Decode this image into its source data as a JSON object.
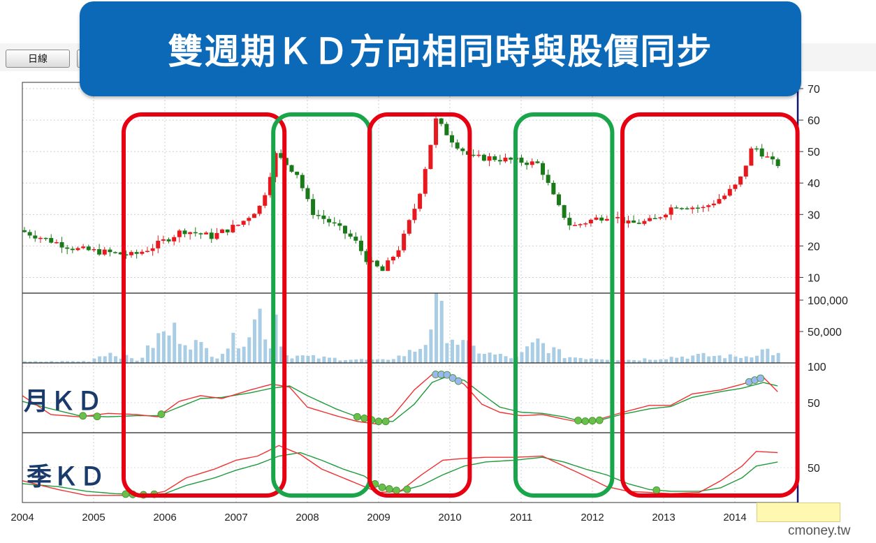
{
  "banner": {
    "title": "雙週期ＫＤ方向相同時與股價同步"
  },
  "toolbar": {
    "daily_button": "日線"
  },
  "labels": {
    "monthly_kd": "月ＫＤ",
    "quarterly_kd": "季ＫＤ"
  },
  "watermark": "cmoney.tw",
  "colors": {
    "up_candle": "#e8191e",
    "down_candle": "#1a7a1a",
    "k_line": "#f03030",
    "d_line": "#1f9a3a",
    "volume": "#a9cde4",
    "low_marker": "#6abf4b",
    "high_marker": "#9ab8ef",
    "red_box": "#e60012",
    "green_box": "#19a64a",
    "banner": "#0b69b8"
  },
  "chart_data": {
    "type": "candlestick",
    "x_ticks": [
      "2004",
      "2005",
      "2006",
      "2007",
      "2008",
      "2009",
      "2010",
      "2011",
      "2012",
      "2013",
      "2014"
    ],
    "price_axis": {
      "ticks": [
        10,
        20,
        30,
        40,
        50,
        60,
        70
      ],
      "ylim": [
        5,
        72
      ]
    },
    "volume_axis": {
      "ticks": [
        "50,000",
        "100,000"
      ],
      "ylim": [
        0,
        100000
      ]
    },
    "monthly_kd_axis": {
      "ticks": [
        "50",
        "100"
      ],
      "ylim": [
        0,
        100
      ]
    },
    "quarterly_kd_axis": {
      "ticks": [
        "50"
      ],
      "ylim": [
        0,
        100
      ]
    },
    "price_path": [
      [
        2004.0,
        25
      ],
      [
        2004.4,
        22
      ],
      [
        2004.8,
        19
      ],
      [
        2005.2,
        18
      ],
      [
        2005.6,
        17
      ],
      [
        2005.9,
        20
      ],
      [
        2006.3,
        25
      ],
      [
        2006.7,
        23
      ],
      [
        2007.1,
        27
      ],
      [
        2007.4,
        33
      ],
      [
        2007.6,
        49
      ],
      [
        2007.9,
        43
      ],
      [
        2008.1,
        31
      ],
      [
        2008.4,
        27
      ],
      [
        2008.7,
        22
      ],
      [
        2008.9,
        15
      ],
      [
        2009.1,
        12
      ],
      [
        2009.35,
        20
      ],
      [
        2009.6,
        35
      ],
      [
        2009.85,
        60
      ],
      [
        2010.1,
        53
      ],
      [
        2010.35,
        48
      ],
      [
        2010.6,
        48
      ],
      [
        2011.0,
        47
      ],
      [
        2011.3,
        46
      ],
      [
        2011.55,
        33
      ],
      [
        2011.75,
        26
      ],
      [
        2012.0,
        28
      ],
      [
        2012.3,
        30
      ],
      [
        2012.55,
        27
      ],
      [
        2012.9,
        28
      ],
      [
        2013.2,
        33
      ],
      [
        2013.6,
        32
      ],
      [
        2013.9,
        36
      ],
      [
        2014.1,
        40
      ],
      [
        2014.3,
        52
      ],
      [
        2014.6,
        46
      ]
    ],
    "volume_path": [
      [
        2004.0,
        2000
      ],
      [
        2004.9,
        3000
      ],
      [
        2005.15,
        18000
      ],
      [
        2005.6,
        4000
      ],
      [
        2005.9,
        45000
      ],
      [
        2006.1,
        52000
      ],
      [
        2006.3,
        38000
      ],
      [
        2006.7,
        12000
      ],
      [
        2006.9,
        34000
      ],
      [
        2007.1,
        45000
      ],
      [
        2007.3,
        82000
      ],
      [
        2007.45,
        30000
      ],
      [
        2007.5,
        95000
      ],
      [
        2007.65,
        13000
      ],
      [
        2008.2,
        8000
      ],
      [
        2008.6,
        6000
      ],
      [
        2009.0,
        4000
      ],
      [
        2009.3,
        12000
      ],
      [
        2009.6,
        28000
      ],
      [
        2009.7,
        65000
      ],
      [
        2009.8,
        92000
      ],
      [
        2009.9,
        58000
      ],
      [
        2010.1,
        32000
      ],
      [
        2010.5,
        15000
      ],
      [
        2010.9,
        8000
      ],
      [
        2011.2,
        35000
      ],
      [
        2011.6,
        10000
      ],
      [
        2012.0,
        8000
      ],
      [
        2012.5,
        5000
      ],
      [
        2013.0,
        9000
      ],
      [
        2013.5,
        12000
      ],
      [
        2014.1,
        10000
      ],
      [
        2014.4,
        22000
      ],
      [
        2014.6,
        12000
      ]
    ],
    "monthly_kd": {
      "k": [
        [
          2004.0,
          55
        ],
        [
          2004.4,
          22
        ],
        [
          2004.8,
          18
        ],
        [
          2005.2,
          24
        ],
        [
          2005.6,
          22
        ],
        [
          2005.9,
          18
        ],
        [
          2006.2,
          45
        ],
        [
          2006.5,
          55
        ],
        [
          2006.8,
          50
        ],
        [
          2007.2,
          65
        ],
        [
          2007.5,
          75
        ],
        [
          2007.75,
          70
        ],
        [
          2008.0,
          35
        ],
        [
          2008.4,
          20
        ],
        [
          2008.7,
          10
        ],
        [
          2009.0,
          5
        ],
        [
          2009.2,
          20
        ],
        [
          2009.5,
          65
        ],
        [
          2009.75,
          92
        ],
        [
          2009.95,
          92
        ],
        [
          2010.2,
          75
        ],
        [
          2010.45,
          40
        ],
        [
          2010.7,
          26
        ],
        [
          2011.0,
          20
        ],
        [
          2011.3,
          22
        ],
        [
          2011.6,
          14
        ],
        [
          2011.85,
          8
        ],
        [
          2012.1,
          14
        ],
        [
          2012.4,
          25
        ],
        [
          2012.8,
          38
        ],
        [
          2013.1,
          38
        ],
        [
          2013.4,
          58
        ],
        [
          2013.8,
          65
        ],
        [
          2014.1,
          75
        ],
        [
          2014.4,
          87
        ],
        [
          2014.6,
          62
        ]
      ],
      "d": [
        [
          2004.0,
          45
        ],
        [
          2004.4,
          32
        ],
        [
          2004.8,
          20
        ],
        [
          2005.2,
          18
        ],
        [
          2005.6,
          20
        ],
        [
          2005.9,
          20
        ],
        [
          2006.2,
          35
        ],
        [
          2006.5,
          50
        ],
        [
          2006.8,
          52
        ],
        [
          2007.2,
          60
        ],
        [
          2007.5,
          68
        ],
        [
          2007.75,
          72
        ],
        [
          2008.0,
          55
        ],
        [
          2008.4,
          32
        ],
        [
          2008.7,
          18
        ],
        [
          2009.0,
          10
        ],
        [
          2009.2,
          10
        ],
        [
          2009.5,
          40
        ],
        [
          2009.75,
          78
        ],
        [
          2009.95,
          88
        ],
        [
          2010.2,
          82
        ],
        [
          2010.45,
          58
        ],
        [
          2010.7,
          35
        ],
        [
          2011.0,
          26
        ],
        [
          2011.3,
          24
        ],
        [
          2011.6,
          18
        ],
        [
          2011.85,
          10
        ],
        [
          2012.1,
          12
        ],
        [
          2012.4,
          22
        ],
        [
          2012.8,
          32
        ],
        [
          2013.1,
          36
        ],
        [
          2013.4,
          52
        ],
        [
          2013.8,
          62
        ],
        [
          2014.1,
          68
        ],
        [
          2014.4,
          78
        ],
        [
          2014.6,
          72
        ]
      ]
    },
    "quarterly_kd": {
      "k": [
        [
          2004.0,
          30
        ],
        [
          2004.5,
          15
        ],
        [
          2004.9,
          5
        ],
        [
          2005.3,
          5
        ],
        [
          2005.7,
          5
        ],
        [
          2006.0,
          12
        ],
        [
          2006.3,
          35
        ],
        [
          2006.7,
          50
        ],
        [
          2007.0,
          65
        ],
        [
          2007.3,
          72
        ],
        [
          2007.6,
          90
        ],
        [
          2007.9,
          75
        ],
        [
          2008.2,
          50
        ],
        [
          2008.5,
          35
        ],
        [
          2008.8,
          20
        ],
        [
          2009.0,
          10
        ],
        [
          2009.3,
          12
        ],
        [
          2009.6,
          40
        ],
        [
          2009.9,
          65
        ],
        [
          2010.2,
          68
        ],
        [
          2010.5,
          70
        ],
        [
          2010.9,
          70
        ],
        [
          2011.3,
          72
        ],
        [
          2011.6,
          55
        ],
        [
          2011.9,
          38
        ],
        [
          2012.2,
          20
        ],
        [
          2012.5,
          12
        ],
        [
          2012.8,
          10
        ],
        [
          2013.1,
          8
        ],
        [
          2013.5,
          10
        ],
        [
          2013.8,
          30
        ],
        [
          2014.1,
          55
        ],
        [
          2014.3,
          80
        ],
        [
          2014.6,
          78
        ]
      ],
      "d": [
        [
          2004.0,
          25
        ],
        [
          2004.5,
          20
        ],
        [
          2004.9,
          12
        ],
        [
          2005.3,
          8
        ],
        [
          2005.7,
          6
        ],
        [
          2006.0,
          8
        ],
        [
          2006.3,
          22
        ],
        [
          2006.7,
          35
        ],
        [
          2007.0,
          48
        ],
        [
          2007.3,
          58
        ],
        [
          2007.6,
          72
        ],
        [
          2007.9,
          78
        ],
        [
          2008.2,
          65
        ],
        [
          2008.5,
          50
        ],
        [
          2008.8,
          38
        ],
        [
          2009.0,
          20
        ],
        [
          2009.3,
          12
        ],
        [
          2009.6,
          22
        ],
        [
          2009.9,
          40
        ],
        [
          2010.2,
          55
        ],
        [
          2010.5,
          62
        ],
        [
          2010.9,
          65
        ],
        [
          2011.3,
          70
        ],
        [
          2011.6,
          62
        ],
        [
          2011.9,
          50
        ],
        [
          2012.2,
          40
        ],
        [
          2012.5,
          25
        ],
        [
          2012.8,
          15
        ],
        [
          2013.1,
          12
        ],
        [
          2013.5,
          12
        ],
        [
          2013.8,
          18
        ],
        [
          2014.1,
          35
        ],
        [
          2014.3,
          55
        ],
        [
          2014.6,
          62
        ]
      ]
    },
    "highlight_boxes": [
      {
        "color": "red",
        "x_range": [
          2005.5,
          2007.6
        ]
      },
      {
        "color": "green",
        "x_range": [
          2007.6,
          2008.8
        ]
      },
      {
        "color": "red",
        "x_range": [
          2008.95,
          2010.2
        ]
      },
      {
        "color": "green",
        "x_range": [
          2011.0,
          2012.2
        ]
      },
      {
        "color": "red",
        "x_range": [
          2012.5,
          2014.8
        ]
      }
    ]
  }
}
